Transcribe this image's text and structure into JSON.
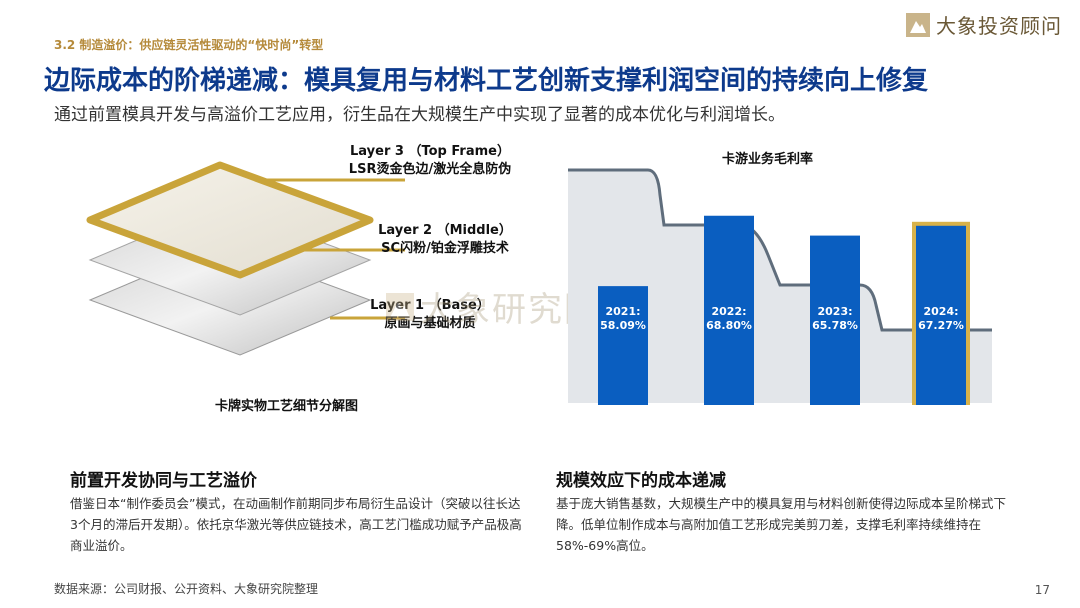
{
  "header": {
    "section_tag": "3.2 制造溢价：供应链灵活性驱动的“快时尚”转型",
    "brand_text": "大象投资顾问",
    "title": "边际成本的阶梯递减：模具复用与材料工艺创新支撑利润空间的持续向上修复",
    "subtitle": "通过前置模具开发与高溢价工艺应用，衍生品在大规模生产中实现了显著的成本优化与利润增长。"
  },
  "diagram": {
    "layers": [
      {
        "line1": "Layer 3 （Top Frame）",
        "line2": "LSR烫金色边/激光全息防伪"
      },
      {
        "line1": "Layer 2 （Middle）",
        "line2": "SC闪粉/铂金浮雕技术"
      },
      {
        "line1": "Layer 1 （Base）",
        "line2": "原画与基础材质"
      }
    ],
    "caption": "卡牌实物工艺细节分解图",
    "gold_color": "#c9a43a"
  },
  "watermark": "大象研究院",
  "chart_data": {
    "type": "bar",
    "title": "卡游业务毛利率",
    "categories": [
      "2021",
      "2022",
      "2023",
      "2024"
    ],
    "values": [
      58.09,
      68.8,
      65.78,
      67.27
    ],
    "labels": [
      "2021:",
      "2022:",
      "2023:",
      "2024:"
    ],
    "value_labels": [
      "58.09%",
      "68.80%",
      "65.78%",
      "67.27%"
    ],
    "highlight_index": 3,
    "bar_color": "#0a5ec0",
    "highlight_border": "#d8b24a",
    "ylim": [
      40,
      75
    ]
  },
  "bottom": {
    "left": {
      "heading": "前置开发协同与工艺溢价",
      "text": "借鉴日本“制作委员会”模式，在动画制作前期同步布局衍生品设计（突破以往长达3个月的滞后开发期）。依托京华激光等供应链技术，高工艺门槛成功赋予产品极高商业溢价。"
    },
    "right": {
      "heading": "规模效应下的成本递减",
      "text": "基于庞大销售基数，大规模生产中的模具复用与材料创新使得边际成本呈阶梯式下降。低单位制作成本与高附加值工艺形成完美剪刀差，支撑毛利率持续维持在58%-69%高位。"
    }
  },
  "footer": {
    "source": "数据来源：公司财报、公开资料、大象研究院整理",
    "page_number": "17"
  }
}
